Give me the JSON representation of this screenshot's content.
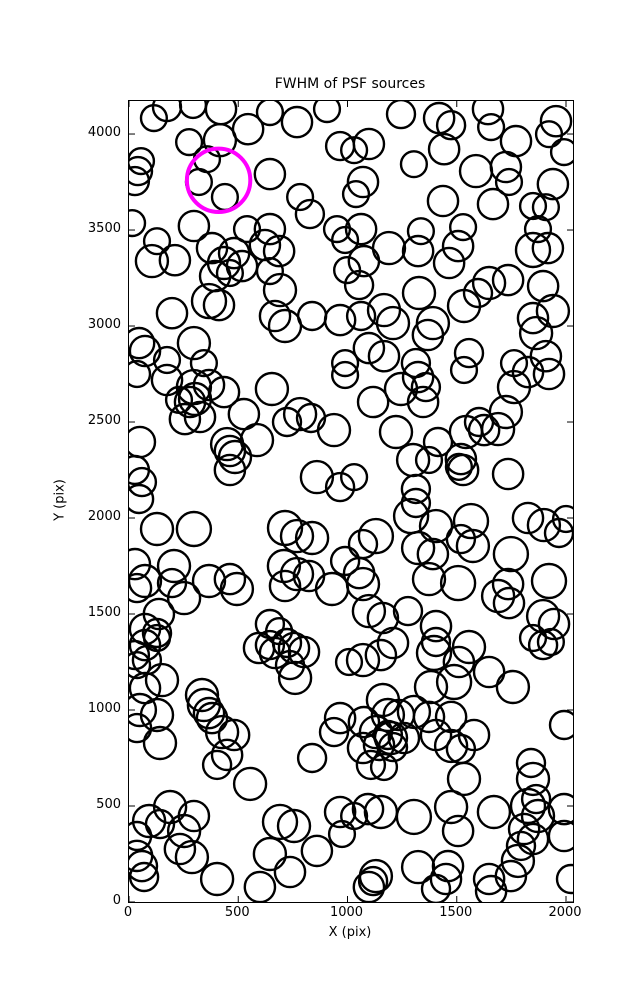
{
  "title": "FWHM of PSF sources",
  "xlabel": "X (pix)",
  "ylabel": "Y (pix)",
  "chart_data": {
    "type": "scatter",
    "title": "FWHM of PSF sources",
    "xlabel": "X (pix)",
    "ylabel": "Y (pix)",
    "xlim": [
      0,
      2032
    ],
    "ylim": [
      0,
      4172
    ],
    "xticks": [
      0,
      500,
      1000,
      1500,
      2000
    ],
    "yticks": [
      0,
      500,
      1000,
      1500,
      2000,
      2500,
      3000,
      3500,
      4000
    ],
    "grid": false,
    "legend": null,
    "marker": "open-circle",
    "marker_color": "#000000",
    "highlight_color": "#ff00ff",
    "note": "points are [x, y, radius] in pixel data units; radius encodes FWHM of each PSF source; highlight_point is the magenta-circled source",
    "highlight_point": [
      410,
      3759,
      145
    ],
    "points": [
      [
        174,
        4140,
        64
      ],
      [
        293,
        4151,
        59
      ],
      [
        421,
        4130,
        69
      ],
      [
        114,
        4083,
        59
      ],
      [
        416,
        3968,
        73
      ],
      [
        275,
        3958,
        59
      ],
      [
        357,
        3869,
        59
      ],
      [
        545,
        4025,
        69
      ],
      [
        645,
        4114,
        59
      ],
      [
        769,
        4062,
        69
      ],
      [
        906,
        4130,
        59
      ],
      [
        966,
        3937,
        64
      ],
      [
        55,
        3859,
        59
      ],
      [
        27,
        3755,
        64
      ],
      [
        14,
        3536,
        59
      ],
      [
        320,
        3750,
        59
      ],
      [
        439,
        3672,
        59
      ],
      [
        783,
        3672,
        59
      ],
      [
        645,
        3791,
        69
      ],
      [
        297,
        3521,
        69
      ],
      [
        540,
        3505,
        59
      ],
      [
        645,
        3505,
        69
      ],
      [
        828,
        3583,
        64
      ],
      [
        952,
        3505,
        59
      ],
      [
        41,
        3807,
        64
      ],
      [
        1245,
        4104,
        64
      ],
      [
        1098,
        3948,
        69
      ],
      [
        1030,
        3916,
        59
      ],
      [
        1419,
        4083,
        69
      ],
      [
        1474,
        4046,
        64
      ],
      [
        1442,
        3921,
        69
      ],
      [
        1643,
        4130,
        69
      ],
      [
        1657,
        4036,
        59
      ],
      [
        1771,
        3963,
        69
      ],
      [
        1588,
        3807,
        73
      ],
      [
        1725,
        3828,
        69
      ],
      [
        1739,
        3750,
        59
      ],
      [
        1304,
        3843,
        59
      ],
      [
        1071,
        3750,
        69
      ],
      [
        1039,
        3687,
        59
      ],
      [
        1437,
        3651,
        69
      ],
      [
        1666,
        3635,
        69
      ],
      [
        1849,
        3625,
        59
      ],
      [
        1908,
        3619,
        59
      ],
      [
        1940,
        3739,
        69
      ],
      [
        1991,
        3906,
        59
      ],
      [
        1954,
        4067,
        69
      ],
      [
        1922,
        3999,
        59
      ],
      [
        1529,
        3515,
        59
      ],
      [
        1336,
        3494,
        59
      ],
      [
        1062,
        3505,
        69
      ],
      [
        1872,
        3505,
        59
      ],
      [
        105,
        3338,
        73
      ],
      [
        210,
        3343,
        69
      ],
      [
        128,
        3442,
        59
      ],
      [
        380,
        3406,
        69
      ],
      [
        435,
        3328,
        73
      ],
      [
        481,
        3380,
        69
      ],
      [
        517,
        3312,
        69
      ],
      [
        394,
        3260,
        69
      ],
      [
        462,
        3276,
        59
      ],
      [
        622,
        3422,
        69
      ],
      [
        687,
        3390,
        69
      ],
      [
        645,
        3286,
        59
      ],
      [
        691,
        3187,
        73
      ],
      [
        366,
        3130,
        78
      ],
      [
        412,
        3109,
        69
      ],
      [
        197,
        3067,
        69
      ],
      [
        297,
        2911,
        73
      ],
      [
        46,
        2911,
        69
      ],
      [
        73,
        2870,
        69
      ],
      [
        174,
        2823,
        59
      ],
      [
        343,
        2807,
        59
      ],
      [
        668,
        3052,
        69
      ],
      [
        714,
        3000,
        73
      ],
      [
        838,
        3052,
        64
      ],
      [
        966,
        3031,
        69
      ],
      [
        989,
        3448,
        59
      ],
      [
        998,
        3291,
        59
      ],
      [
        989,
        2807,
        59
      ],
      [
        1190,
        3406,
        73
      ],
      [
        1323,
        3390,
        69
      ],
      [
        1506,
        3416,
        69
      ],
      [
        1465,
        3328,
        69
      ],
      [
        1075,
        3338,
        69
      ],
      [
        1053,
        3213,
        64
      ],
      [
        1849,
        3396,
        78
      ],
      [
        1917,
        3406,
        69
      ],
      [
        1648,
        3224,
        73
      ],
      [
        1735,
        3239,
        69
      ],
      [
        1327,
        3172,
        73
      ],
      [
        1533,
        3104,
        73
      ],
      [
        1597,
        3172,
        64
      ],
      [
        1895,
        3208,
        69
      ],
      [
        1940,
        3078,
        73
      ],
      [
        1849,
        3041,
        69
      ],
      [
        1863,
        2963,
        73
      ],
      [
        1167,
        3083,
        73
      ],
      [
        1208,
        3015,
        73
      ],
      [
        1391,
        3015,
        73
      ],
      [
        1368,
        2953,
        69
      ],
      [
        1062,
        3052,
        64
      ],
      [
        1098,
        2885,
        69
      ],
      [
        1167,
        2843,
        69
      ],
      [
        1313,
        2807,
        64
      ],
      [
        1556,
        2859,
        64
      ],
      [
        1762,
        2807,
        59
      ],
      [
        1908,
        2843,
        69
      ],
      [
        37,
        2750,
        59
      ],
      [
        174,
        2719,
        69
      ],
      [
        297,
        2682,
        78
      ],
      [
        302,
        2620,
        73
      ],
      [
        279,
        2604,
        69
      ],
      [
        366,
        2693,
        69
      ],
      [
        229,
        2615,
        59
      ],
      [
        435,
        2656,
        69
      ],
      [
        256,
        2515,
        69
      ],
      [
        325,
        2526,
        69
      ],
      [
        526,
        2541,
        69
      ],
      [
        654,
        2672,
        73
      ],
      [
        783,
        2541,
        73
      ],
      [
        833,
        2521,
        64
      ],
      [
        723,
        2500,
        64
      ],
      [
        938,
        2458,
        73
      ],
      [
        50,
        2396,
        69
      ],
      [
        449,
        2385,
        73
      ],
      [
        462,
        2349,
        69
      ],
      [
        485,
        2318,
        73
      ],
      [
        586,
        2406,
        73
      ],
      [
        462,
        2250,
        69
      ],
      [
        27,
        2250,
        64
      ],
      [
        59,
        2187,
        64
      ],
      [
        860,
        2213,
        73
      ],
      [
        966,
        2161,
        64
      ],
      [
        989,
        2745,
        59
      ],
      [
        1117,
        2604,
        69
      ],
      [
        1245,
        2672,
        73
      ],
      [
        1323,
        2734,
        69
      ],
      [
        1359,
        2682,
        64
      ],
      [
        1346,
        2604,
        69
      ],
      [
        1533,
        2771,
        59
      ],
      [
        1762,
        2682,
        73
      ],
      [
        1826,
        2760,
        69
      ],
      [
        1922,
        2750,
        69
      ],
      [
        1725,
        2552,
        73
      ],
      [
        1689,
        2463,
        73
      ],
      [
        1602,
        2500,
        64
      ],
      [
        1222,
        2448,
        73
      ],
      [
        1542,
        2448,
        73
      ],
      [
        1625,
        2458,
        69
      ],
      [
        1414,
        2396,
        64
      ],
      [
        1300,
        2302,
        73
      ],
      [
        1373,
        2302,
        59
      ],
      [
        1519,
        2307,
        69
      ],
      [
        1510,
        2266,
        59
      ],
      [
        1529,
        2250,
        69
      ],
      [
        1735,
        2229,
        69
      ],
      [
        1313,
        2151,
        64
      ],
      [
        1030,
        2213,
        59
      ],
      [
        46,
        2099,
        64
      ],
      [
        128,
        1943,
        73
      ],
      [
        297,
        1943,
        78
      ],
      [
        27,
        1760,
        69
      ],
      [
        73,
        1672,
        73
      ],
      [
        37,
        1635,
        64
      ],
      [
        206,
        1750,
        73
      ],
      [
        197,
        1661,
        64
      ],
      [
        252,
        1583,
        73
      ],
      [
        366,
        1672,
        73
      ],
      [
        462,
        1682,
        69
      ],
      [
        494,
        1630,
        73
      ],
      [
        137,
        1500,
        69
      ],
      [
        73,
        1422,
        69
      ],
      [
        128,
        1401,
        64
      ],
      [
        714,
        1948,
        78
      ],
      [
        769,
        1906,
        73
      ],
      [
        838,
        1896,
        73
      ],
      [
        709,
        1750,
        73
      ],
      [
        769,
        1708,
        73
      ],
      [
        824,
        1698,
        69
      ],
      [
        714,
        1646,
        69
      ],
      [
        929,
        1630,
        73
      ],
      [
        989,
        1776,
        64
      ],
      [
        645,
        1448,
        64
      ],
      [
        687,
        1411,
        59
      ],
      [
        1130,
        1906,
        78
      ],
      [
        1071,
        1864,
        64
      ],
      [
        1291,
        2010,
        78
      ],
      [
        1313,
        2078,
        64
      ],
      [
        1405,
        1958,
        73
      ],
      [
        1323,
        1844,
        73
      ],
      [
        1391,
        1812,
        69
      ],
      [
        1565,
        1984,
        78
      ],
      [
        1574,
        1854,
        73
      ],
      [
        1519,
        1890,
        64
      ],
      [
        1748,
        1812,
        78
      ],
      [
        1826,
        2000,
        69
      ],
      [
        1899,
        1963,
        73
      ],
      [
        1968,
        1922,
        64
      ],
      [
        2000,
        1995,
        59
      ],
      [
        1373,
        1682,
        73
      ],
      [
        1506,
        1661,
        78
      ],
      [
        1053,
        1713,
        69
      ],
      [
        1071,
        1656,
        73
      ],
      [
        1098,
        1515,
        73
      ],
      [
        1162,
        1479,
        69
      ],
      [
        1277,
        1515,
        64
      ],
      [
        1405,
        1437,
        69
      ],
      [
        1735,
        1656,
        69
      ],
      [
        1689,
        1594,
        73
      ],
      [
        1739,
        1557,
        69
      ],
      [
        1922,
        1672,
        78
      ],
      [
        1895,
        1489,
        73
      ],
      [
        1945,
        1448,
        69
      ],
      [
        73,
        1338,
        69
      ],
      [
        27,
        1286,
        64
      ],
      [
        82,
        1260,
        64
      ],
      [
        37,
        1234,
        59
      ],
      [
        128,
        1375,
        59
      ],
      [
        151,
        1156,
        73
      ],
      [
        73,
        1114,
        69
      ],
      [
        50,
        1000,
        73
      ],
      [
        128,
        974,
        73
      ],
      [
        37,
        906,
        64
      ],
      [
        142,
        828,
        73
      ],
      [
        334,
        1078,
        73
      ],
      [
        343,
        1026,
        73
      ],
      [
        366,
        984,
        69
      ],
      [
        380,
        958,
        69
      ],
      [
        426,
        885,
        73
      ],
      [
        481,
        870,
        69
      ],
      [
        449,
        766,
        69
      ],
      [
        403,
        714,
        64
      ],
      [
        595,
        1323,
        69
      ],
      [
        645,
        1338,
        64
      ],
      [
        668,
        1297,
        69
      ],
      [
        723,
        1349,
        64
      ],
      [
        755,
        1323,
        69
      ],
      [
        737,
        1234,
        64
      ],
      [
        801,
        1302,
        69
      ],
      [
        760,
        1167,
        73
      ],
      [
        966,
        958,
        69
      ],
      [
        938,
        885,
        64
      ],
      [
        838,
        750,
        64
      ],
      [
        1007,
        1250,
        59
      ],
      [
        1071,
        1260,
        73
      ],
      [
        1153,
        1286,
        69
      ],
      [
        1208,
        1349,
        69
      ],
      [
        1396,
        1297,
        78
      ],
      [
        1405,
        1354,
        64
      ],
      [
        1556,
        1328,
        73
      ],
      [
        1648,
        1198,
        69
      ],
      [
        1488,
        1146,
        78
      ],
      [
        1510,
        1250,
        69
      ],
      [
        1382,
        1120,
        73
      ],
      [
        1757,
        1120,
        73
      ],
      [
        1162,
        1052,
        73
      ],
      [
        1185,
        974,
        73
      ],
      [
        1075,
        937,
        69
      ],
      [
        1130,
        885,
        73
      ],
      [
        1199,
        854,
        73
      ],
      [
        1258,
        854,
        69
      ],
      [
        1235,
        974,
        69
      ],
      [
        1304,
        990,
        73
      ],
      [
        1373,
        964,
        69
      ],
      [
        1405,
        870,
        69
      ],
      [
        1474,
        964,
        69
      ],
      [
        1474,
        813,
        73
      ],
      [
        1519,
        797,
        64
      ],
      [
        1579,
        870,
        69
      ],
      [
        1071,
        802,
        69
      ],
      [
        1144,
        818,
        69
      ],
      [
        1185,
        870,
        64
      ],
      [
        1208,
        807,
        64
      ],
      [
        1107,
        714,
        64
      ],
      [
        1167,
        703,
        59
      ],
      [
        1849,
        1375,
        59
      ],
      [
        1895,
        1338,
        64
      ],
      [
        1931,
        1354,
        59
      ],
      [
        1991,
        922,
        64
      ],
      [
        1840,
        724,
        64
      ],
      [
        554,
        615,
        73
      ],
      [
        188,
        495,
        73
      ],
      [
        92,
        422,
        73
      ],
      [
        142,
        406,
        64
      ],
      [
        252,
        370,
        73
      ],
      [
        297,
        448,
        69
      ],
      [
        233,
        276,
        69
      ],
      [
        288,
        234,
        73
      ],
      [
        37,
        344,
        64
      ],
      [
        37,
        240,
        69
      ],
      [
        59,
        187,
        69
      ],
      [
        69,
        130,
        64
      ],
      [
        403,
        120,
        73
      ],
      [
        691,
        417,
        78
      ],
      [
        755,
        396,
        73
      ],
      [
        645,
        250,
        73
      ],
      [
        737,
        156,
        69
      ],
      [
        599,
        78,
        69
      ],
      [
        860,
        266,
        69
      ],
      [
        966,
        469,
        69
      ],
      [
        975,
        354,
        59
      ],
      [
        1533,
        641,
        73
      ],
      [
        1849,
        641,
        73
      ],
      [
        1094,
        484,
        69
      ],
      [
        1153,
        469,
        73
      ],
      [
        1030,
        448,
        59
      ],
      [
        1304,
        443,
        78
      ],
      [
        1474,
        495,
        73
      ],
      [
        1506,
        370,
        69
      ],
      [
        1670,
        469,
        73
      ],
      [
        1826,
        500,
        78
      ],
      [
        1872,
        448,
        73
      ],
      [
        1808,
        380,
        69
      ],
      [
        1849,
        328,
        69
      ],
      [
        1794,
        292,
        64
      ],
      [
        1863,
        536,
        64
      ],
      [
        1991,
        484,
        69
      ],
      [
        1991,
        344,
        69
      ],
      [
        1780,
        214,
        73
      ],
      [
        1748,
        135,
        69
      ],
      [
        1323,
        182,
        73
      ],
      [
        1460,
        187,
        69
      ],
      [
        1451,
        120,
        69
      ],
      [
        1648,
        120,
        69
      ],
      [
        1657,
        57,
        69
      ],
      [
        1130,
        135,
        73
      ],
      [
        1117,
        109,
        64
      ],
      [
        1098,
        78,
        69
      ],
      [
        1405,
        68,
        64
      ],
      [
        2023,
        120,
        64
      ]
    ]
  }
}
